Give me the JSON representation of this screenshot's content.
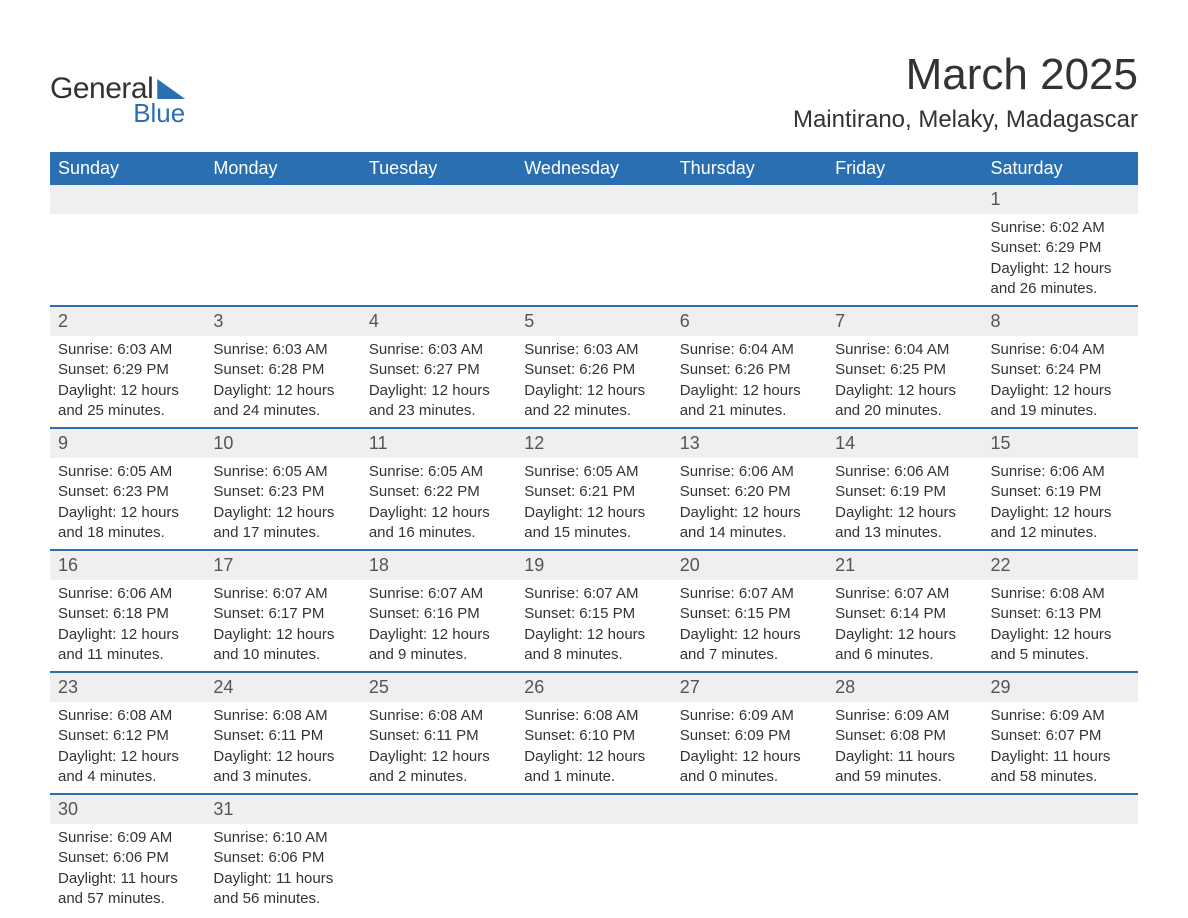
{
  "logo": {
    "text1": "General",
    "text2": "Blue"
  },
  "header": {
    "title": "March 2025",
    "location": "Maintirano, Melaky, Madagascar"
  },
  "colors": {
    "header_bg": "#2b6fb3",
    "header_text": "#ffffff",
    "daynum_bg": "#efefef",
    "row_separator": "#2b6fb3",
    "text": "#333333"
  },
  "typography": {
    "title_fontsize": 44,
    "location_fontsize": 24,
    "weekday_fontsize": 18,
    "daynum_fontsize": 18,
    "detail_fontsize": 15
  },
  "weekdays": [
    "Sunday",
    "Monday",
    "Tuesday",
    "Wednesday",
    "Thursday",
    "Friday",
    "Saturday"
  ],
  "weeks": [
    [
      null,
      null,
      null,
      null,
      null,
      null,
      {
        "d": "1",
        "sunrise": "Sunrise: 6:02 AM",
        "sunset": "Sunset: 6:29 PM",
        "daylight": "Daylight: 12 hours and 26 minutes."
      }
    ],
    [
      {
        "d": "2",
        "sunrise": "Sunrise: 6:03 AM",
        "sunset": "Sunset: 6:29 PM",
        "daylight": "Daylight: 12 hours and 25 minutes."
      },
      {
        "d": "3",
        "sunrise": "Sunrise: 6:03 AM",
        "sunset": "Sunset: 6:28 PM",
        "daylight": "Daylight: 12 hours and 24 minutes."
      },
      {
        "d": "4",
        "sunrise": "Sunrise: 6:03 AM",
        "sunset": "Sunset: 6:27 PM",
        "daylight": "Daylight: 12 hours and 23 minutes."
      },
      {
        "d": "5",
        "sunrise": "Sunrise: 6:03 AM",
        "sunset": "Sunset: 6:26 PM",
        "daylight": "Daylight: 12 hours and 22 minutes."
      },
      {
        "d": "6",
        "sunrise": "Sunrise: 6:04 AM",
        "sunset": "Sunset: 6:26 PM",
        "daylight": "Daylight: 12 hours and 21 minutes."
      },
      {
        "d": "7",
        "sunrise": "Sunrise: 6:04 AM",
        "sunset": "Sunset: 6:25 PM",
        "daylight": "Daylight: 12 hours and 20 minutes."
      },
      {
        "d": "8",
        "sunrise": "Sunrise: 6:04 AM",
        "sunset": "Sunset: 6:24 PM",
        "daylight": "Daylight: 12 hours and 19 minutes."
      }
    ],
    [
      {
        "d": "9",
        "sunrise": "Sunrise: 6:05 AM",
        "sunset": "Sunset: 6:23 PM",
        "daylight": "Daylight: 12 hours and 18 minutes."
      },
      {
        "d": "10",
        "sunrise": "Sunrise: 6:05 AM",
        "sunset": "Sunset: 6:23 PM",
        "daylight": "Daylight: 12 hours and 17 minutes."
      },
      {
        "d": "11",
        "sunrise": "Sunrise: 6:05 AM",
        "sunset": "Sunset: 6:22 PM",
        "daylight": "Daylight: 12 hours and 16 minutes."
      },
      {
        "d": "12",
        "sunrise": "Sunrise: 6:05 AM",
        "sunset": "Sunset: 6:21 PM",
        "daylight": "Daylight: 12 hours and 15 minutes."
      },
      {
        "d": "13",
        "sunrise": "Sunrise: 6:06 AM",
        "sunset": "Sunset: 6:20 PM",
        "daylight": "Daylight: 12 hours and 14 minutes."
      },
      {
        "d": "14",
        "sunrise": "Sunrise: 6:06 AM",
        "sunset": "Sunset: 6:19 PM",
        "daylight": "Daylight: 12 hours and 13 minutes."
      },
      {
        "d": "15",
        "sunrise": "Sunrise: 6:06 AM",
        "sunset": "Sunset: 6:19 PM",
        "daylight": "Daylight: 12 hours and 12 minutes."
      }
    ],
    [
      {
        "d": "16",
        "sunrise": "Sunrise: 6:06 AM",
        "sunset": "Sunset: 6:18 PM",
        "daylight": "Daylight: 12 hours and 11 minutes."
      },
      {
        "d": "17",
        "sunrise": "Sunrise: 6:07 AM",
        "sunset": "Sunset: 6:17 PM",
        "daylight": "Daylight: 12 hours and 10 minutes."
      },
      {
        "d": "18",
        "sunrise": "Sunrise: 6:07 AM",
        "sunset": "Sunset: 6:16 PM",
        "daylight": "Daylight: 12 hours and 9 minutes."
      },
      {
        "d": "19",
        "sunrise": "Sunrise: 6:07 AM",
        "sunset": "Sunset: 6:15 PM",
        "daylight": "Daylight: 12 hours and 8 minutes."
      },
      {
        "d": "20",
        "sunrise": "Sunrise: 6:07 AM",
        "sunset": "Sunset: 6:15 PM",
        "daylight": "Daylight: 12 hours and 7 minutes."
      },
      {
        "d": "21",
        "sunrise": "Sunrise: 6:07 AM",
        "sunset": "Sunset: 6:14 PM",
        "daylight": "Daylight: 12 hours and 6 minutes."
      },
      {
        "d": "22",
        "sunrise": "Sunrise: 6:08 AM",
        "sunset": "Sunset: 6:13 PM",
        "daylight": "Daylight: 12 hours and 5 minutes."
      }
    ],
    [
      {
        "d": "23",
        "sunrise": "Sunrise: 6:08 AM",
        "sunset": "Sunset: 6:12 PM",
        "daylight": "Daylight: 12 hours and 4 minutes."
      },
      {
        "d": "24",
        "sunrise": "Sunrise: 6:08 AM",
        "sunset": "Sunset: 6:11 PM",
        "daylight": "Daylight: 12 hours and 3 minutes."
      },
      {
        "d": "25",
        "sunrise": "Sunrise: 6:08 AM",
        "sunset": "Sunset: 6:11 PM",
        "daylight": "Daylight: 12 hours and 2 minutes."
      },
      {
        "d": "26",
        "sunrise": "Sunrise: 6:08 AM",
        "sunset": "Sunset: 6:10 PM",
        "daylight": "Daylight: 12 hours and 1 minute."
      },
      {
        "d": "27",
        "sunrise": "Sunrise: 6:09 AM",
        "sunset": "Sunset: 6:09 PM",
        "daylight": "Daylight: 12 hours and 0 minutes."
      },
      {
        "d": "28",
        "sunrise": "Sunrise: 6:09 AM",
        "sunset": "Sunset: 6:08 PM",
        "daylight": "Daylight: 11 hours and 59 minutes."
      },
      {
        "d": "29",
        "sunrise": "Sunrise: 6:09 AM",
        "sunset": "Sunset: 6:07 PM",
        "daylight": "Daylight: 11 hours and 58 minutes."
      }
    ],
    [
      {
        "d": "30",
        "sunrise": "Sunrise: 6:09 AM",
        "sunset": "Sunset: 6:06 PM",
        "daylight": "Daylight: 11 hours and 57 minutes."
      },
      {
        "d": "31",
        "sunrise": "Sunrise: 6:10 AM",
        "sunset": "Sunset: 6:06 PM",
        "daylight": "Daylight: 11 hours and 56 minutes."
      },
      null,
      null,
      null,
      null,
      null
    ]
  ]
}
